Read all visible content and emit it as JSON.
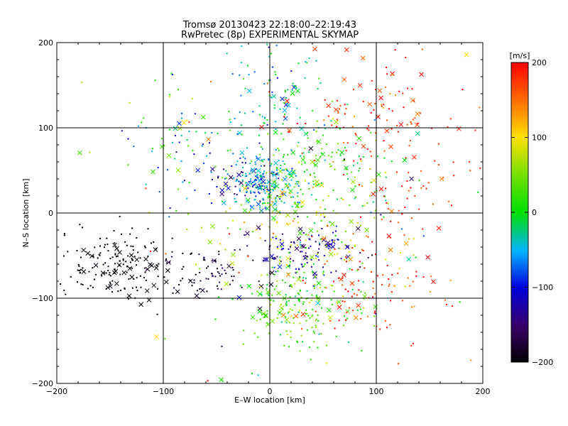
{
  "chart_data": {
    "type": "scatter",
    "title": "Tromsø 20130423 22:18:00–22:19:43",
    "subtitle": "RwPretec (8p) EXPERIMENTAL SKYMAP",
    "xlabel": "E–W location [km]",
    "ylabel": "N–S location [km]",
    "xlim": [
      -200,
      200
    ],
    "ylim": [
      -200,
      200
    ],
    "xticks": [
      -200,
      -100,
      0,
      100,
      200
    ],
    "yticks": [
      -200,
      -100,
      0,
      100,
      200
    ],
    "grid": true,
    "colorbar": {
      "label": "[m/s]",
      "range": [
        -200,
        200
      ],
      "ticks": [
        -200,
        -100,
        0,
        100,
        200
      ],
      "colormap": "rainbow (black-purple-blue-cyan-green-yellow-orange-red)"
    },
    "markers": {
      "small_dot": "velocity sample",
      "cross": "velocity sample (alternate marker)"
    },
    "clusters": [
      {
        "x": -140,
        "y": -60,
        "sx": 30,
        "sy": 22,
        "n": 180,
        "v": -200,
        "vs": 8
      },
      {
        "x": -55,
        "y": -70,
        "sx": 25,
        "sy": 20,
        "n": 70,
        "v": -180,
        "vs": 15
      },
      {
        "x": -30,
        "y": 35,
        "sx": 20,
        "sy": 15,
        "n": 70,
        "v": -120,
        "vs": 30
      },
      {
        "x": 30,
        "y": -45,
        "sx": 28,
        "sy": 15,
        "n": 120,
        "v": -130,
        "vs": 25
      },
      {
        "x": -5,
        "y": 35,
        "sx": 15,
        "sy": 15,
        "n": 160,
        "v": -50,
        "vs": 20
      },
      {
        "x": 5,
        "y": 140,
        "sx": 22,
        "sy": 35,
        "n": 90,
        "v": -30,
        "vs": 35
      },
      {
        "x": 40,
        "y": 45,
        "sx": 35,
        "sy": 35,
        "n": 190,
        "v": 20,
        "vs": 35
      },
      {
        "x": 30,
        "y": -110,
        "sx": 28,
        "sy": 25,
        "n": 200,
        "v": 30,
        "vs": 30
      },
      {
        "x": 30,
        "y": -20,
        "sx": 40,
        "sy": 35,
        "n": 130,
        "v": 80,
        "vs": 40
      },
      {
        "x": 100,
        "y": 120,
        "sx": 40,
        "sy": 30,
        "n": 100,
        "v": 180,
        "vs": 25
      },
      {
        "x": 95,
        "y": -80,
        "sx": 35,
        "sy": 30,
        "n": 100,
        "v": 180,
        "vs": 25
      },
      {
        "x": 130,
        "y": 30,
        "sx": 30,
        "sy": 40,
        "n": 60,
        "v": 180,
        "vs": 20
      },
      {
        "x": -80,
        "y": 80,
        "sx": 40,
        "sy": 40,
        "n": 60,
        "v": -20,
        "vs": 60
      },
      {
        "x": 0,
        "y": 0,
        "sx": 110,
        "sy": 110,
        "n": 120,
        "v": 0,
        "vs": 120
      }
    ],
    "cross_fraction": 0.18,
    "seed": 42
  }
}
